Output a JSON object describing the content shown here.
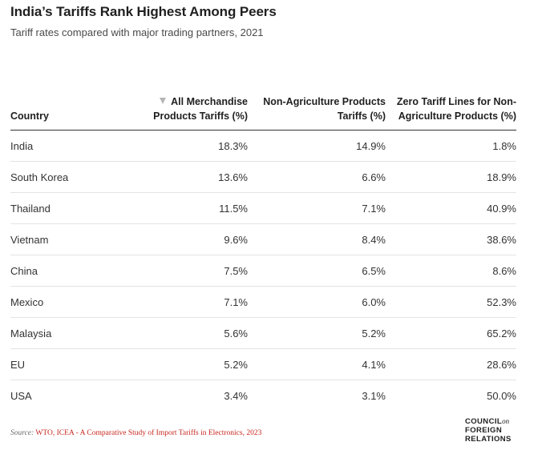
{
  "header": {
    "title": "India’s Tariffs Rank Highest Among Peers",
    "subtitle": "Tariff rates compared with major trading partners, 2021"
  },
  "table": {
    "columns": [
      "Country",
      "All Merchandise Products Tariffs (%)",
      "Non-Agriculture Products Tariffs (%)",
      "Zero Tariff Lines for Non-Agriculture Products (%)"
    ],
    "sort_icon": "triangle-down-icon",
    "rows": [
      {
        "country": "India",
        "all": "18.3%",
        "nonag": "14.9%",
        "zero": "1.8%"
      },
      {
        "country": "South Korea",
        "all": "13.6%",
        "nonag": "6.6%",
        "zero": "18.9%"
      },
      {
        "country": "Thailand",
        "all": "11.5%",
        "nonag": "7.1%",
        "zero": "40.9%"
      },
      {
        "country": "Vietnam",
        "all": "9.6%",
        "nonag": "8.4%",
        "zero": "38.6%"
      },
      {
        "country": "China",
        "all": "7.5%",
        "nonag": "6.5%",
        "zero": "8.6%"
      },
      {
        "country": "Mexico",
        "all": "7.1%",
        "nonag": "6.0%",
        "zero": "52.3%"
      },
      {
        "country": "Malaysia",
        "all": "5.6%",
        "nonag": "5.2%",
        "zero": "65.2%"
      },
      {
        "country": "EU",
        "all": "5.2%",
        "nonag": "4.1%",
        "zero": "28.6%"
      },
      {
        "country": "USA",
        "all": "3.4%",
        "nonag": "3.1%",
        "zero": "50.0%"
      }
    ]
  },
  "footer": {
    "source_label": "Source:",
    "source_text": "WTO, ICEA - A Comparative Study of Import Tariffs in Electronics, 2023",
    "logo_line1": "COUNCIL",
    "logo_on": "on",
    "logo_line2": "FOREIGN",
    "logo_line3": "RELATIONS"
  },
  "colors": {
    "source_text": "#c8261e",
    "header_rule": "#333333",
    "row_rule": "#e4e4e4",
    "sort_icon": "#b5b5b5"
  }
}
